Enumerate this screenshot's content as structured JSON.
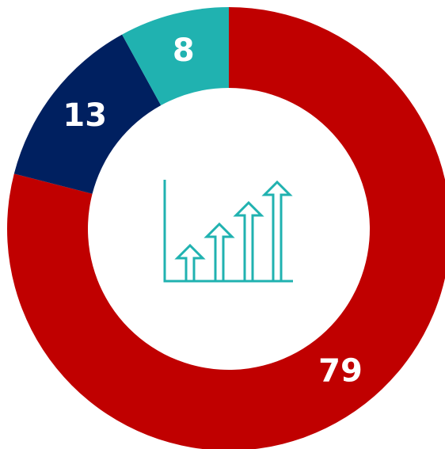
{
  "chart_data": {
    "type": "donut",
    "values": [
      79,
      13,
      8
    ],
    "colors": [
      "#c00000",
      "#002060",
      "#20b2b0"
    ]
  }
}
